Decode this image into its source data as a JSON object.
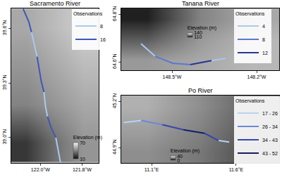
{
  "chart_data": [
    {
      "type": "line",
      "title": "Sacramento River",
      "legend_title": "Observations",
      "legend": "upper right",
      "grid": false,
      "xlim": [
        -122.14,
        -121.72
      ],
      "ylim": [
        38.86,
        39.71
      ],
      "xticks": [
        {
          "value": -122.0,
          "label": "122.0°W"
        },
        {
          "value": -121.8,
          "label": "121.8°W"
        }
      ],
      "yticks": [
        {
          "value": 39.0,
          "label": "39.0°N"
        },
        {
          "value": 39.3,
          "label": "39.3°N"
        },
        {
          "value": 39.6,
          "label": "39.6°N"
        }
      ],
      "series": [
        {
          "name": "8",
          "color": "#a9c9ee",
          "x": [
            -122.043,
            -122.03,
            -122.016,
            null,
            -121.983,
            -121.976,
            -121.966,
            null,
            -121.926,
            -121.916,
            -121.903
          ],
          "y": [
            39.58,
            39.515,
            39.445,
            null,
            39.251,
            39.174,
            39.116,
            null,
            39.0,
            38.942,
            38.86
          ]
        },
        {
          "name": "16",
          "color": "#3f57b8",
          "x": [
            -122.083,
            -122.056,
            -122.043,
            null,
            -122.016,
            -122.006,
            -121.996,
            -121.983,
            null,
            -121.966,
            -121.95,
            -121.926
          ],
          "y": [
            39.708,
            39.638,
            39.58,
            null,
            39.445,
            39.367,
            39.309,
            39.251,
            null,
            39.116,
            39.058,
            39.0
          ]
        }
      ],
      "elevation": {
        "title": "Elevation (m)",
        "x": [
          -122.07,
          -121.93,
          -121.79
        ],
        "y": [
          38.97,
          39.18,
          39.39,
          39.6
        ],
        "z": [
          [
            20,
            35,
            45
          ],
          [
            40,
            45,
            50
          ],
          [
            45,
            50,
            55
          ],
          [
            50,
            55,
            60
          ]
        ],
        "range": [
          10,
          70
        ],
        "ticks": [
          10,
          70
        ]
      }
    },
    {
      "type": "line",
      "title": "Tanana River",
      "legend_title": "Observations",
      "legend": "upper right",
      "grid": false,
      "xlim": [
        -148.68,
        -148.12
      ],
      "ylim": [
        64.565,
        64.825
      ],
      "xticks": [
        {
          "value": -148.5,
          "label": "148.5°W"
        },
        {
          "value": -148.2,
          "label": "148.2°W"
        }
      ],
      "yticks": [
        {
          "value": 64.6,
          "label": "64.6°N"
        },
        {
          "value": 64.8,
          "label": "64.8°N"
        }
      ],
      "series": [
        {
          "name": "4",
          "color": "#a9c9ee",
          "x": [
            -148.61,
            -148.56,
            null,
            -148.36,
            -148.31
          ],
          "y": [
            64.677,
            64.624,
            null,
            64.606,
            64.615
          ]
        },
        {
          "name": "8",
          "color": "#5b78d0",
          "x": [
            -148.56,
            -148.498,
            -148.435
          ],
          "y": [
            64.624,
            64.595,
            64.589
          ]
        },
        {
          "name": "12",
          "color": "#2a3590",
          "x": [
            -148.435,
            -148.36
          ],
          "y": [
            64.589,
            64.606
          ]
        }
      ],
      "elevation": {
        "title": "Elevation (m)",
        "x": [
          -148.587,
          -148.4,
          -148.213
        ],
        "y": [
          64.608,
          64.695,
          64.782
        ],
        "z": [
          [
            128,
            130,
            132
          ],
          [
            120,
            128,
            132
          ],
          [
            112,
            125,
            130
          ]
        ],
        "range": [
          110,
          140
        ],
        "ticks": [
          110,
          140
        ]
      }
    },
    {
      "type": "line",
      "title": "Po River",
      "legend_title": "Observations",
      "legend": "upper right",
      "grid": false,
      "xlim": [
        10.92,
        11.855
      ],
      "ylim": [
        44.8,
        45.24
      ],
      "xticks": [
        {
          "value": 11.1,
          "label": "11.1°E"
        },
        {
          "value": 11.6,
          "label": "11.6°E"
        }
      ],
      "yticks": [
        {
          "value": 44.9,
          "label": "44.9°N"
        },
        {
          "value": 45.2,
          "label": "45.2°N"
        }
      ],
      "series": [
        {
          "name": "17 - 26",
          "color": "#b7d3f2",
          "x": [
            10.934,
            11.038,
            null,
            11.496,
            11.559
          ],
          "y": [
            45.064,
            45.078,
            null,
            44.947,
            44.937
          ]
        },
        {
          "name": "26 - 34",
          "color": "#6a8ad8",
          "x": [
            11.038,
            11.163
          ],
          "y": [
            45.078,
            45.05
          ]
        },
        {
          "name": "34 - 43",
          "color": "#3547ad",
          "x": [
            11.163,
            11.288,
            null,
            11.413,
            11.496
          ],
          "y": [
            45.05,
            45.017,
            null,
            44.994,
            44.947
          ]
        },
        {
          "name": "43 - 52",
          "color": "#161d66",
          "x": [
            11.288,
            11.413
          ],
          "y": [
            45.017,
            44.994
          ]
        }
      ],
      "elevation": {
        "title": "Elevation (m)",
        "x": [
          11.076,
          11.388,
          11.699
        ],
        "y": [
          44.873,
          45.02,
          45.167
        ],
        "z": [
          [
            22,
            18,
            10
          ],
          [
            25,
            20,
            12
          ],
          [
            28,
            22,
            14
          ]
        ],
        "range": [
          0,
          40
        ],
        "ticks": [
          0,
          40
        ]
      }
    }
  ]
}
